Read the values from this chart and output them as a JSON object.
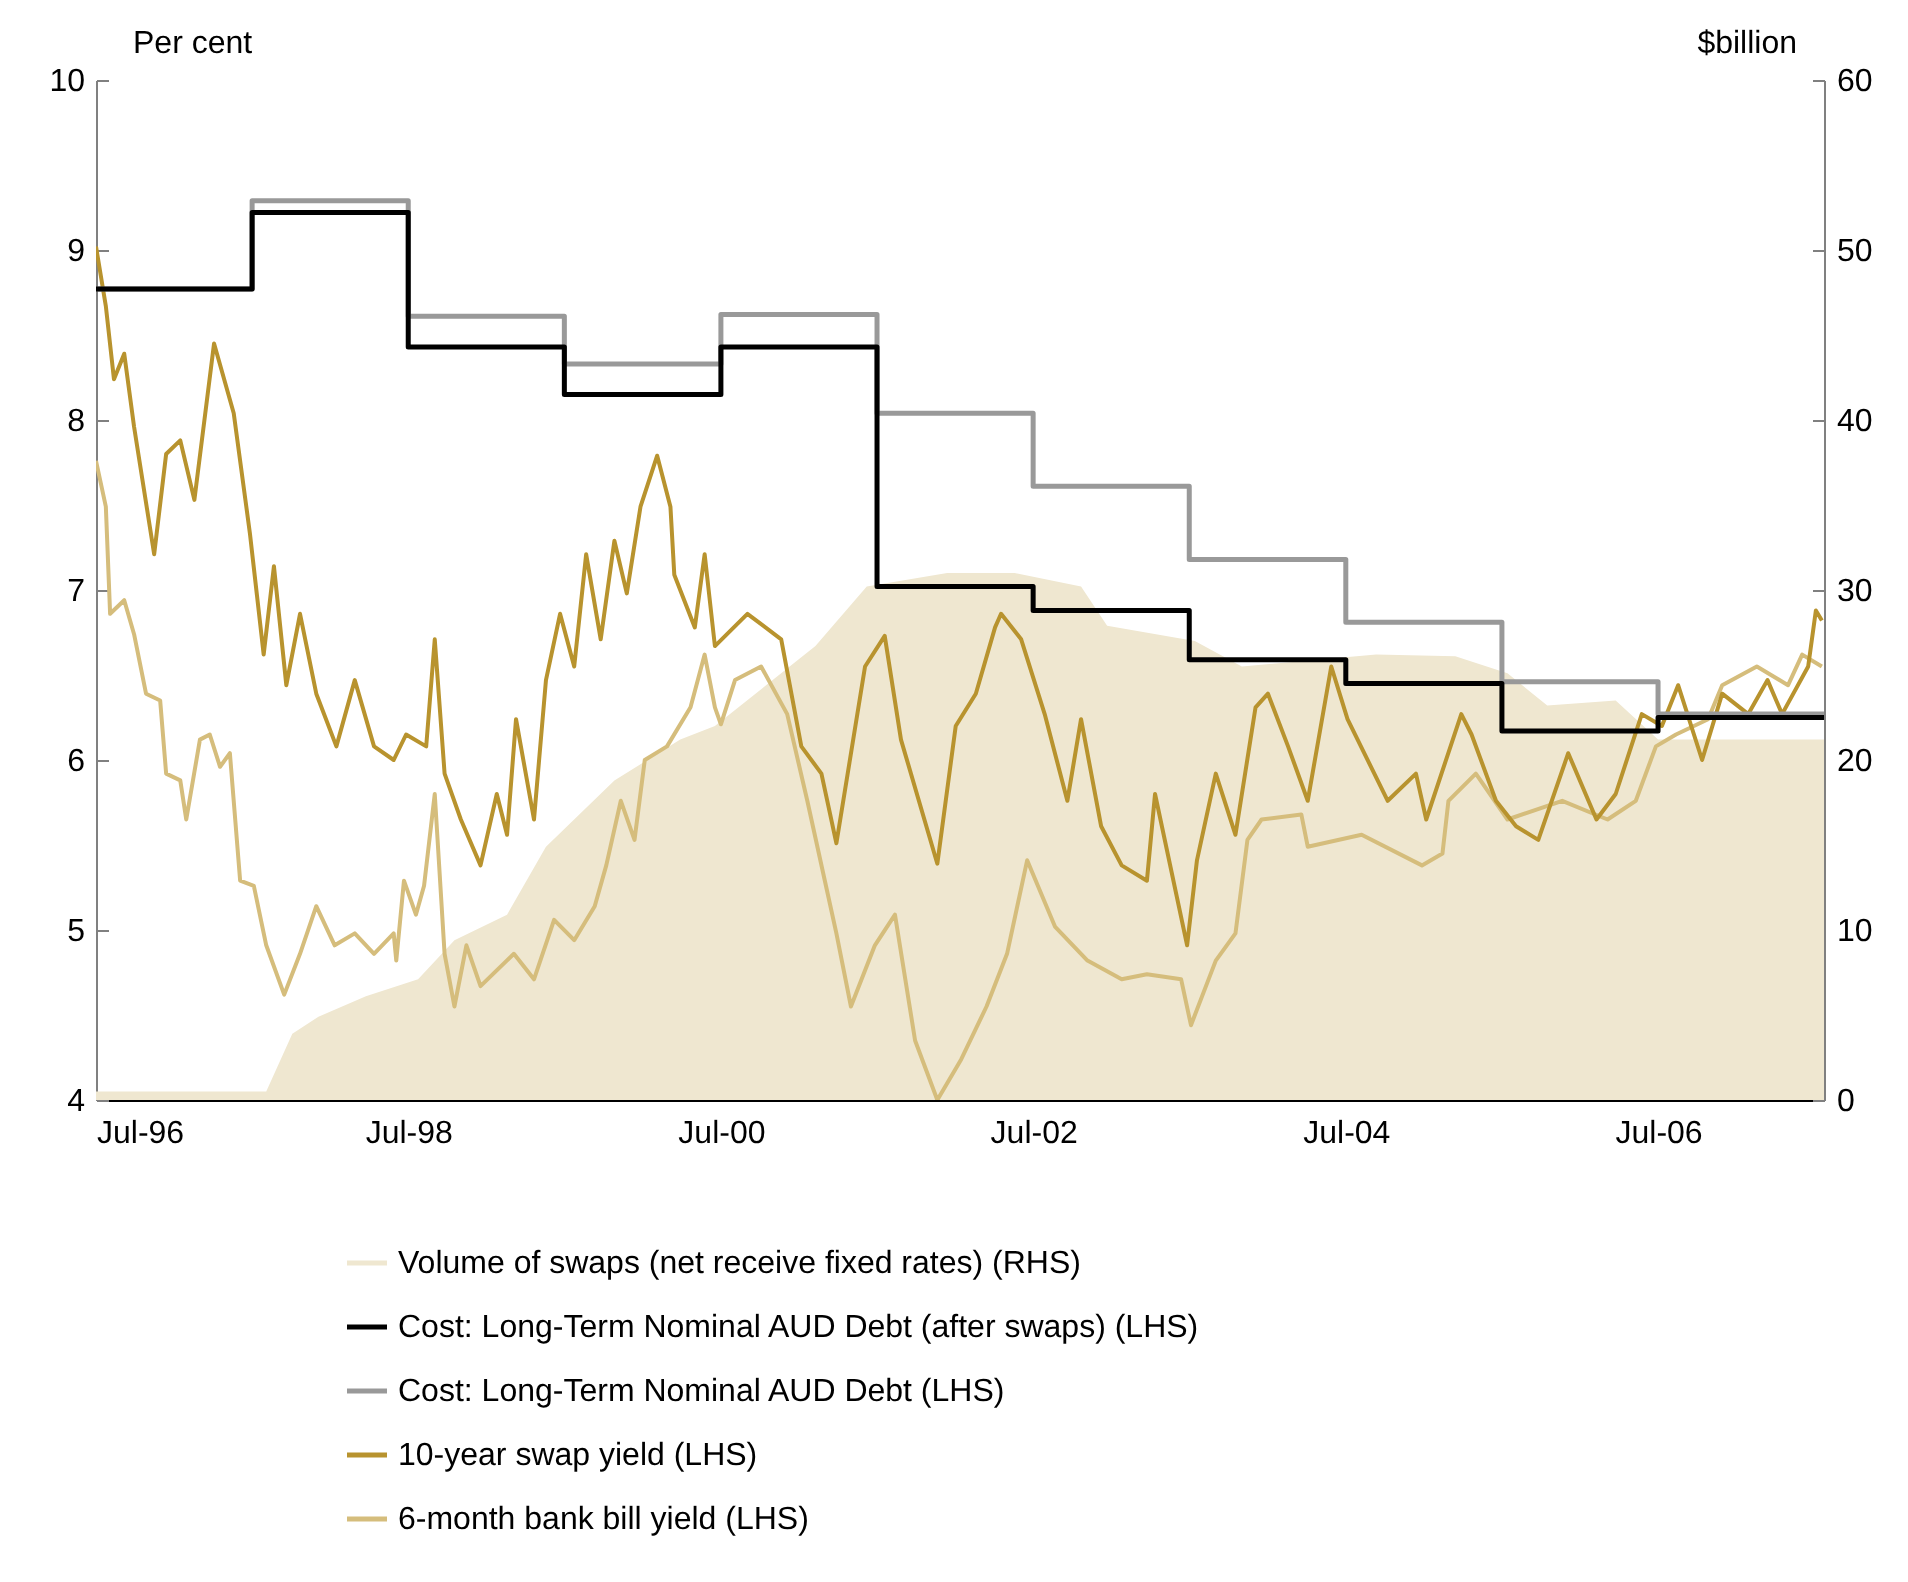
{
  "chart_data": {
    "type": "line",
    "xlabel": null,
    "ylabel": "Per cent",
    "y2label": "$billion",
    "legend": "bottom",
    "xlim": [
      "1996-07-01",
      "2007-07-24"
    ],
    "xticks": [
      {
        "value": "1996-07-01",
        "label": "Jul-96"
      },
      {
        "value": "1998-07-01",
        "label": "Jul-98"
      },
      {
        "value": "2000-07-01",
        "label": "Jul-00"
      },
      {
        "value": "2002-07-01",
        "label": "Jul-02"
      },
      {
        "value": "2004-07-01",
        "label": "Jul-04"
      },
      {
        "value": "2006-07-01",
        "label": "Jul-06"
      }
    ],
    "ylim": [
      4,
      10
    ],
    "yticks": [
      4,
      5,
      6,
      7,
      8,
      9,
      10
    ],
    "y2lim": [
      0,
      60
    ],
    "y2ticks": [
      0,
      10,
      20,
      30,
      40,
      50,
      60
    ],
    "series": [
      {
        "name": "Volume of swaps (net receive fixed rates) (RHS)",
        "type": "area",
        "axis": "y2",
        "color": "#efe7d0",
        "x": [
          "1996-07-01",
          "1997-08-03",
          "1997-10-03",
          "1997-12-03",
          "1998-03-24",
          "1998-07-24",
          "1998-10-17",
          "1999-02-17",
          "1999-05-19",
          "1999-10-26",
          "2000-03-28",
          "2000-06-17",
          "2001-02-07",
          "2001-06-07",
          "2001-12-12",
          "2002-05-19",
          "2002-10-21",
          "2002-12-21",
          "2003-07-14",
          "2003-11-01",
          "2004-09-10",
          "2005-03-14",
          "2005-07-14",
          "2005-10-15",
          "2006-03-24",
          "2006-07-01",
          "2007-07-24"
        ],
        "values": [
          0.5,
          0.5,
          3.9,
          4.9,
          6.1,
          7.1,
          9.4,
          10.9,
          14.9,
          18.8,
          21.2,
          22.0,
          26.7,
          30.2,
          31.0,
          31.0,
          30.2,
          27.9,
          27.0,
          25.5,
          26.2,
          26.1,
          25.1,
          23.2,
          23.5,
          21.2,
          21.2
        ]
      },
      {
        "name": "Cost: Long-Term Nominal AUD Debt (after swaps) (LHS)",
        "type": "step",
        "color": "#000000",
        "x": [
          "1996-07-01",
          "1997-07-01",
          "1998-07-01",
          "1999-07-01",
          "2000-07-01",
          "2001-07-01",
          "2002-07-01",
          "2003-07-01",
          "2004-07-01",
          "2005-07-01",
          "2006-07-01",
          "2007-07-24"
        ],
        "values": [
          8.77,
          9.22,
          8.43,
          8.15,
          8.43,
          7.02,
          6.88,
          6.59,
          6.45,
          6.17,
          6.25,
          6.25
        ]
      },
      {
        "name": "Cost: Long-Term Nominal AUD Debt (LHS)",
        "type": "step",
        "color": "#999999",
        "x": [
          "1996-07-01",
          "1997-07-01",
          "1998-07-01",
          "1999-07-01",
          "2000-07-01",
          "2001-07-01",
          "2002-07-01",
          "2003-07-01",
          "2004-07-01",
          "2005-07-01",
          "2006-07-01",
          "2007-07-24"
        ],
        "values": [
          8.77,
          9.29,
          8.61,
          8.33,
          8.62,
          8.04,
          7.61,
          7.18,
          6.81,
          6.46,
          6.27,
          6.27
        ]
      },
      {
        "name": "10-year swap yield (LHS)",
        "type": "line",
        "color": "#b8932e",
        "x": [
          "1996-07-01",
          "1996-07-24",
          "1996-08-12",
          "1996-09-05",
          "1996-09-28",
          "1996-11-14",
          "1996-12-12",
          "1997-01-14",
          "1997-02-16",
          "1997-04-03",
          "1997-05-19",
          "1997-06-26",
          "1997-07-28",
          "1997-08-21",
          "1997-09-19",
          "1997-10-21",
          "1997-11-28",
          "1998-01-14",
          "1998-02-26",
          "1998-04-12",
          "1998-05-28",
          "1998-06-26",
          "1998-08-12",
          "1998-09-01",
          "1998-09-24",
          "1998-11-01",
          "1998-12-17",
          "1999-01-24",
          "1999-02-17",
          "1999-03-10",
          "1999-04-21",
          "1999-05-19",
          "1999-06-21",
          "1999-07-24",
          "1999-08-21",
          "1999-09-24",
          "1999-10-26",
          "1999-11-24",
          "1999-12-26",
          "2000-02-03",
          "2000-03-05",
          "2000-03-14",
          "2000-05-01",
          "2000-05-24",
          "2000-06-17",
          "2000-09-01",
          "2000-11-19",
          "2001-01-05",
          "2001-02-21",
          "2001-03-28",
          "2001-06-03",
          "2001-07-19",
          "2001-08-26",
          "2001-11-19",
          "2002-01-01",
          "2002-02-17",
          "2002-04-03",
          "2002-04-17",
          "2002-06-03",
          "2002-07-28",
          "2002-09-19",
          "2002-10-21",
          "2002-12-07",
          "2003-01-24",
          "2003-03-24",
          "2003-04-12",
          "2003-06-26",
          "2003-07-19",
          "2003-09-01",
          "2003-10-17",
          "2003-12-03",
          "2004-01-01",
          "2004-02-17",
          "2004-04-03",
          "2004-05-28",
          "2004-07-05",
          "2004-10-07",
          "2004-12-12",
          "2005-01-05",
          "2005-03-28",
          "2005-04-21",
          "2005-06-17",
          "2005-08-03",
          "2005-09-24",
          "2005-12-03",
          "2006-02-07",
          "2006-03-24",
          "2006-05-24",
          "2006-07-10",
          "2006-08-17",
          "2006-10-12",
          "2006-11-28",
          "2007-01-28",
          "2007-03-14",
          "2007-04-17",
          "2007-06-17",
          "2007-07-05",
          "2007-07-19"
        ],
        "values": [
          9.02,
          8.67,
          8.24,
          8.39,
          7.96,
          7.21,
          7.8,
          7.88,
          7.53,
          8.45,
          8.04,
          7.33,
          6.62,
          7.14,
          6.44,
          6.86,
          6.39,
          6.08,
          6.47,
          6.08,
          6.0,
          6.15,
          6.08,
          6.71,
          5.92,
          5.65,
          5.38,
          5.8,
          5.56,
          6.24,
          5.65,
          6.47,
          6.86,
          6.55,
          7.21,
          6.71,
          7.29,
          6.98,
          7.49,
          7.79,
          7.49,
          7.09,
          6.78,
          7.21,
          6.67,
          6.86,
          6.71,
          6.08,
          5.92,
          5.51,
          6.55,
          6.73,
          6.12,
          5.39,
          6.2,
          6.39,
          6.78,
          6.86,
          6.71,
          6.27,
          5.76,
          6.24,
          5.61,
          5.38,
          5.29,
          5.8,
          4.91,
          5.41,
          5.92,
          5.56,
          6.31,
          6.39,
          6.08,
          5.76,
          6.55,
          6.24,
          5.76,
          5.92,
          5.65,
          6.27,
          6.15,
          5.76,
          5.61,
          5.53,
          6.04,
          5.65,
          5.8,
          6.27,
          6.2,
          6.44,
          6.0,
          6.39,
          6.27,
          6.47,
          6.27,
          6.55,
          6.88,
          6.82
        ]
      },
      {
        "name": "6-month bank bill yield (LHS)",
        "type": "line",
        "color": "#d5bd7c",
        "x": [
          "1996-07-01",
          "1996-07-24",
          "1996-08-03",
          "1996-09-05",
          "1996-09-28",
          "1996-10-26",
          "1996-11-28",
          "1996-12-12",
          "1997-01-14",
          "1997-01-28",
          "1997-03-01",
          "1997-03-24",
          "1997-04-17",
          "1997-05-10",
          "1997-06-03",
          "1997-07-05",
          "1997-08-03",
          "1997-09-14",
          "1997-10-21",
          "1997-11-28",
          "1998-01-10",
          "1998-02-26",
          "1998-04-12",
          "1998-05-28",
          "1998-06-03",
          "1998-06-21",
          "1998-07-19",
          "1998-08-07",
          "1998-09-01",
          "1998-09-24",
          "1998-10-17",
          "1998-11-14",
          "1998-12-17",
          "1999-03-05",
          "1999-04-21",
          "1999-06-07",
          "1999-07-24",
          "1999-09-10",
          "1999-10-07",
          "1999-11-10",
          "1999-12-12",
          "2000-01-05",
          "2000-02-26",
          "2000-04-21",
          "2000-05-24",
          "2000-06-17",
          "2000-07-01",
          "2000-08-03",
          "2000-10-03",
          "2000-12-03",
          "2001-01-19",
          "2001-03-01",
          "2001-03-28",
          "2001-05-01",
          "2001-06-26",
          "2001-08-12",
          "2001-09-28",
          "2001-11-19",
          "2002-01-14",
          "2002-03-14",
          "2002-05-01",
          "2002-06-17",
          "2002-08-21",
          "2002-11-05",
          "2003-01-24",
          "2003-03-24",
          "2003-06-12",
          "2003-07-05",
          "2003-09-01",
          "2003-10-17",
          "2003-11-14",
          "2003-12-17",
          "2004-03-19",
          "2004-04-03",
          "2004-08-07",
          "2004-12-26",
          "2005-02-12",
          "2005-02-26",
          "2005-05-01",
          "2005-07-14",
          "2005-11-19",
          "2006-03-05",
          "2006-05-10",
          "2006-06-26",
          "2006-08-12",
          "2006-10-26",
          "2006-11-28",
          "2007-02-17",
          "2007-05-01",
          "2007-06-03",
          "2007-07-19"
        ],
        "values": [
          7.76,
          7.49,
          6.86,
          6.94,
          6.74,
          6.39,
          6.35,
          5.92,
          5.88,
          5.65,
          6.12,
          6.15,
          5.96,
          6.04,
          5.29,
          5.26,
          4.91,
          4.62,
          4.86,
          5.14,
          4.91,
          4.98,
          4.86,
          4.98,
          4.82,
          5.29,
          5.09,
          5.26,
          5.8,
          4.86,
          4.55,
          4.91,
          4.67,
          4.86,
          4.71,
          5.06,
          4.94,
          5.14,
          5.38,
          5.76,
          5.53,
          6.0,
          6.08,
          6.31,
          6.62,
          6.31,
          6.21,
          6.47,
          6.55,
          6.27,
          5.76,
          5.29,
          4.98,
          4.55,
          4.91,
          5.09,
          4.35,
          4.0,
          4.24,
          4.55,
          4.86,
          5.41,
          5.02,
          4.82,
          4.71,
          4.74,
          4.71,
          4.44,
          4.82,
          4.98,
          5.53,
          5.65,
          5.68,
          5.49,
          5.56,
          5.38,
          5.45,
          5.76,
          5.92,
          5.65,
          5.76,
          5.65,
          5.76,
          6.08,
          6.15,
          6.24,
          6.44,
          6.55,
          6.44,
          6.62,
          6.55
        ]
      }
    ]
  }
}
